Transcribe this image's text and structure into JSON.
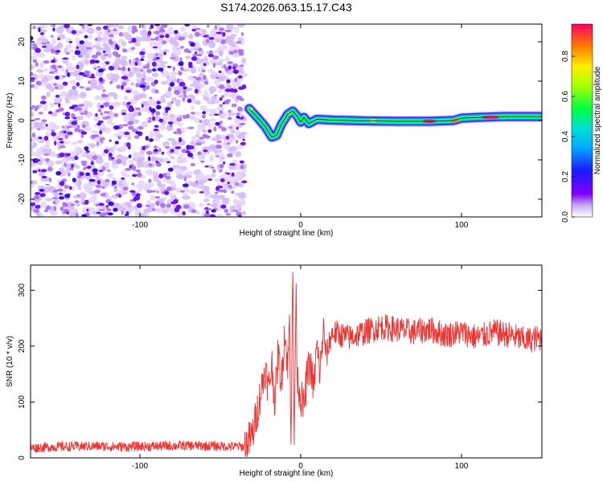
{
  "title": "S174.2026.063.15.17.C43",
  "chart_data": [
    {
      "type": "heatmap",
      "xlabel": "Height of straight line (km)",
      "ylabel": "Frequency (Hz)",
      "xlim": [
        -168,
        150
      ],
      "ylim": [
        -24.5,
        24.5
      ],
      "xticks": [
        -100,
        0,
        100
      ],
      "yticks": [
        -20,
        -10,
        0,
        10,
        20
      ],
      "colorbar": {
        "label": "Normalized spectral amplitude",
        "range": [
          0.0,
          0.96
        ],
        "ticks": [
          0.0,
          0.2,
          0.4,
          0.6,
          0.8
        ],
        "tick_labels": [
          "0.0",
          "0.2",
          "0.4",
          "0.6",
          "0.8"
        ]
      },
      "noise_region_x": [
        -168,
        -35
      ],
      "signal_track": [
        {
          "x": -32,
          "y": 3.0
        },
        {
          "x": -27,
          "y": 0.8
        },
        {
          "x": -22,
          "y": -1.6
        },
        {
          "x": -18,
          "y": -4.2
        },
        {
          "x": -15,
          "y": -3.8
        },
        {
          "x": -12,
          "y": -1.0
        },
        {
          "x": -8,
          "y": 1.6
        },
        {
          "x": -5,
          "y": 2.4
        },
        {
          "x": -2,
          "y": 1.0
        },
        {
          "x": 0,
          "y": -0.4
        },
        {
          "x": 2,
          "y": 0.8
        },
        {
          "x": 5,
          "y": -0.8
        },
        {
          "x": 10,
          "y": 0.3
        },
        {
          "x": 20,
          "y": 0.1
        },
        {
          "x": 40,
          "y": -0.1
        },
        {
          "x": 60,
          "y": -0.2
        },
        {
          "x": 80,
          "y": -0.2
        },
        {
          "x": 95,
          "y": 0.0
        },
        {
          "x": 100,
          "y": 0.6
        },
        {
          "x": 110,
          "y": 0.8
        },
        {
          "x": 125,
          "y": 1.0
        },
        {
          "x": 150,
          "y": 1.0
        }
      ]
    },
    {
      "type": "line",
      "xlabel": "Height of straight line (km)",
      "ylabel": "SNR (10 * v/v)",
      "xlim": [
        -168,
        150
      ],
      "ylim": [
        0,
        345
      ],
      "xticks": [
        -100,
        0,
        100
      ],
      "yticks": [
        0,
        100,
        200,
        300
      ],
      "color": "#ee3333",
      "series": [
        {
          "x": [
            -168,
            -150,
            -130,
            -110,
            -90,
            -70,
            -50,
            -35,
            -30,
            -25,
            -22,
            -20,
            -18,
            -16,
            -14,
            -12,
            -10,
            -8,
            -7,
            -6,
            -5,
            -4,
            -3,
            -2,
            0,
            2,
            4,
            6,
            8,
            10,
            12,
            14,
            16,
            18,
            20,
            25,
            30,
            40,
            50,
            60,
            70,
            80,
            90,
            100,
            110,
            120,
            130,
            140,
            150
          ],
          "y": [
            18,
            20,
            21,
            20,
            21,
            22,
            21,
            20,
            40,
            115,
            160,
            120,
            170,
            100,
            190,
            130,
            230,
            160,
            250,
            40,
            345,
            20,
            300,
            140,
            110,
            90,
            150,
            170,
            120,
            200,
            150,
            230,
            180,
            210,
            225,
            220,
            215,
            225,
            235,
            230,
            225,
            230,
            220,
            225,
            215,
            225,
            220,
            210,
            215
          ]
        }
      ]
    }
  ]
}
